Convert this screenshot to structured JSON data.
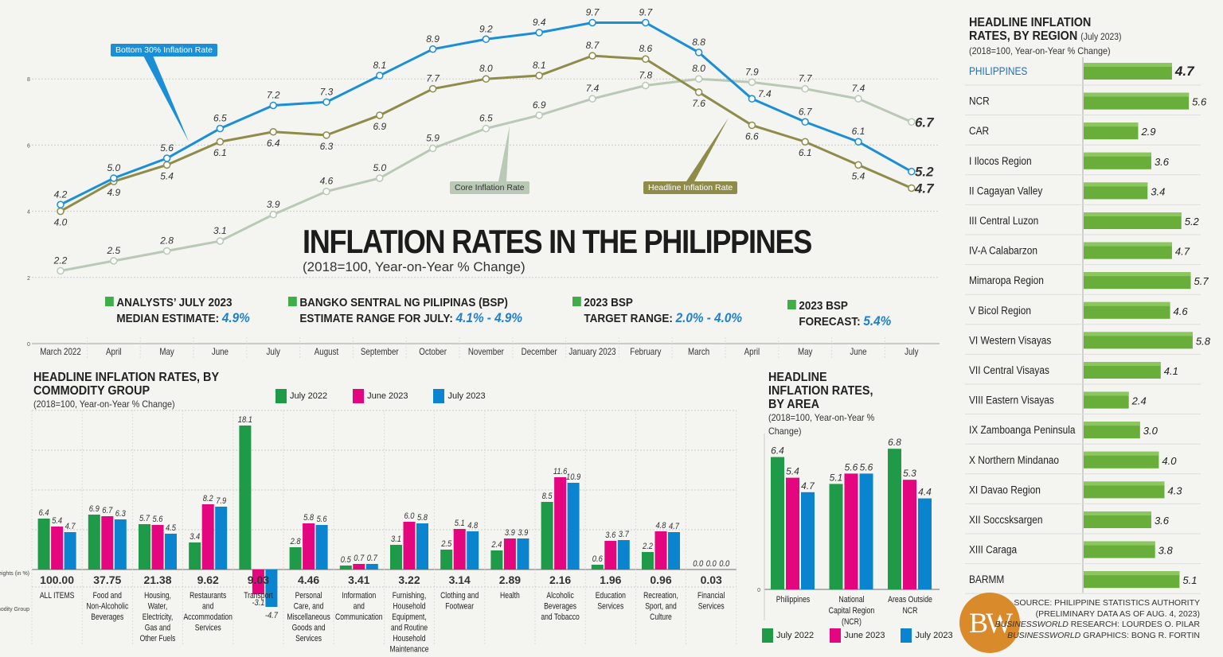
{
  "main": {
    "title": "INFLATION RATES IN THE PHILIPPINES",
    "subtitle": "(2018=100, Year-on-Year % Change)"
  },
  "stats": [
    {
      "line1": "ANALYSTS’ JULY 2023",
      "line2": "MEDIAN ESTIMATE:",
      "value": "4.9%"
    },
    {
      "line1": "BANGKO SENTRAL NG PILIPINAS (BSP)",
      "line2": "ESTIMATE RANGE FOR JULY:",
      "value": "4.1% - 4.9%"
    },
    {
      "line1": "2023 BSP",
      "line2": "TARGET RANGE:",
      "value": "2.0% - 4.0%"
    },
    {
      "line1": "2023 BSP",
      "line2": "FORECAST:",
      "value": "5.4%"
    }
  ],
  "colors": {
    "bottom30": "#1a8fd8",
    "headline": "#8f8c4a",
    "core": "#bac8b6",
    "july2022": "#1f9a48",
    "june2023": "#e3067f",
    "july2023": "#0b84cf",
    "region_bar": "#69ad3b",
    "stat_value": "#1e7fd0"
  },
  "chart_data": [
    {
      "type": "line",
      "categories": [
        "March 2022",
        "April",
        "May",
        "June",
        "July",
        "August",
        "September",
        "October",
        "November",
        "December",
        "January 2023",
        "February",
        "March",
        "April",
        "May",
        "June",
        "July"
      ],
      "ylim": [
        0,
        10
      ],
      "yticks": [
        "0",
        "2",
        "4",
        "6",
        "8"
      ],
      "grid": true,
      "series": [
        {
          "name": "Bottom 30% Inflation Rate",
          "values": [
            4.2,
            5.0,
            5.6,
            6.5,
            7.2,
            7.3,
            8.1,
            8.9,
            9.2,
            9.4,
            9.7,
            9.7,
            8.8,
            7.4,
            6.7,
            6.1,
            5.2
          ]
        },
        {
          "name": "Headline Inflation Rate",
          "values": [
            4.0,
            4.9,
            5.4,
            6.1,
            6.4,
            6.3,
            6.9,
            7.7,
            8.0,
            8.1,
            8.7,
            8.6,
            7.6,
            6.6,
            6.1,
            5.4,
            4.7
          ]
        },
        {
          "name": "Core Inflation Rate",
          "values": [
            2.2,
            2.5,
            2.8,
            3.1,
            3.9,
            4.6,
            5.0,
            5.9,
            6.5,
            6.9,
            7.4,
            7.8,
            8.0,
            7.9,
            7.7,
            7.4,
            6.7
          ]
        }
      ]
    },
    {
      "type": "bar",
      "title": "HEADLINE INFLATION RATES, BY COMMODITY GROUP",
      "subtitle": "(2018=100, Year-on-Year % Change)",
      "weights_label": "Weights (in %)",
      "group_label": "Commodity Group",
      "legend": [
        "July 2022",
        "June 2023",
        "July 2023"
      ],
      "categories": [
        "ALL ITEMS",
        "Food and Non-Alcoholic Beverages",
        "Housing, Water, Electricity, Gas and Other Fuels",
        "Restaurants and Accommodation Services",
        "Transport",
        "Personal Care, and Miscellaneous Goods and Services",
        "Information and Communication",
        "Furnishing, Household Equipment, and Routine Household Maintenance",
        "Clothing and Footwear",
        "Health",
        "Alcoholic Beverages and Tobacco",
        "Education Services",
        "Recreation, Sport, and Culture",
        "Financial Services"
      ],
      "weights": [
        "100.00",
        "37.75",
        "21.38",
        "9.62",
        "9.03",
        "4.46",
        "3.41",
        "3.22",
        "3.14",
        "2.89",
        "2.16",
        "1.96",
        "0.96",
        "0.03"
      ],
      "series": [
        {
          "name": "July 2022",
          "values": [
            6.4,
            6.9,
            5.7,
            3.4,
            18.1,
            2.8,
            0.5,
            3.1,
            2.5,
            2.4,
            8.5,
            0.6,
            2.2,
            0.0
          ]
        },
        {
          "name": "June 2023",
          "values": [
            5.4,
            6.7,
            5.6,
            8.2,
            -3.1,
            5.8,
            0.7,
            6.0,
            5.1,
            3.9,
            11.6,
            3.6,
            4.8,
            0.0
          ]
        },
        {
          "name": "July 2023",
          "values": [
            4.7,
            6.3,
            4.5,
            7.9,
            -4.7,
            5.6,
            0.7,
            5.8,
            4.8,
            3.9,
            10.9,
            3.7,
            4.7,
            0.0
          ]
        }
      ]
    },
    {
      "type": "bar",
      "title": "HEADLINE INFLATION RATES, BY AREA",
      "subtitle": "(2018=100, Year-on-Year % Change)",
      "ytick": "0",
      "legend": [
        "July 2022",
        "June 2023",
        "July 2023"
      ],
      "categories": [
        "Philippines",
        "National Capital Region (NCR)",
        "Areas Outside NCR"
      ],
      "series": [
        {
          "name": "July 2022",
          "values": [
            6.4,
            5.1,
            6.8
          ]
        },
        {
          "name": "June 2023",
          "values": [
            5.4,
            5.6,
            5.3
          ]
        },
        {
          "name": "July 2023",
          "values": [
            4.7,
            5.6,
            4.4
          ]
        }
      ]
    },
    {
      "type": "bar",
      "orientation": "horizontal",
      "title": "HEADLINE INFLATION RATES, BY REGION",
      "title_note": "(July 2023)",
      "subtitle": "(2018=100, Year-on-Year % Change)",
      "categories": [
        "PHILIPPINES",
        "NCR",
        "CAR",
        "I Ilocos Region",
        "II Cagayan Valley",
        "III Central Luzon",
        "IV-A Calabarzon",
        "Mimaropa Region",
        "V Bicol Region",
        "VI Western Visayas",
        "VII Central Visayas",
        "VIII Eastern Visayas",
        "IX Zamboanga Peninsula",
        "X Northern Mindanao",
        "XI Davao Region",
        "XII Soccsksargen",
        "XIII Caraga",
        "BARMM"
      ],
      "values": [
        4.7,
        5.6,
        2.9,
        3.6,
        3.4,
        5.2,
        4.7,
        5.7,
        4.6,
        5.8,
        4.1,
        2.4,
        3.0,
        4.0,
        4.3,
        3.6,
        3.8,
        5.1
      ]
    }
  ],
  "source": {
    "line1": "SOURCE: PHILIPPINE STATISTICS AUTHORITY",
    "line2": "(PRELIMINARY DATA AS OF AUG. 4, 2023)",
    "line3_brand": "BUSINESSWORLD",
    "line3": " RESEARCH: LOURDES O. PILAR",
    "line4_brand": "BUSINESSWORLD",
    "line4": " GRAPHICS: BONG R. FORTIN"
  },
  "logo": "BW"
}
